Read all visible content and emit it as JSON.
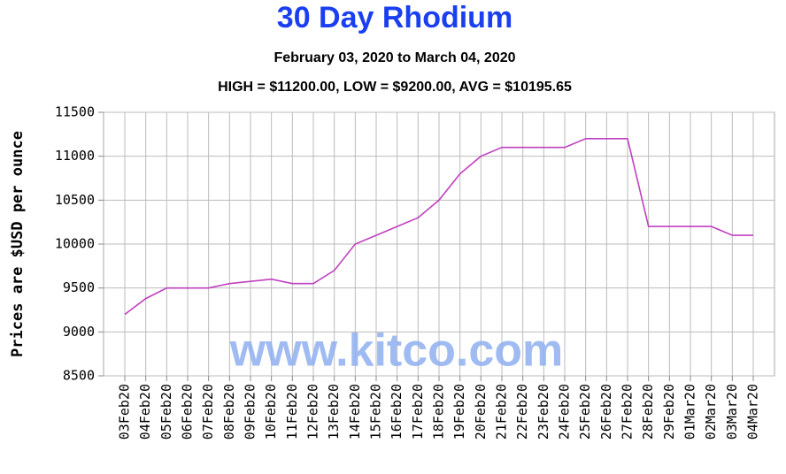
{
  "chart_data": {
    "type": "line",
    "title": "30 Day Rhodium",
    "subtitle": "February 03, 2020 to March 04, 2020",
    "stats": "HIGH = $11200.00, LOW = $9200.00, AVG = $10195.65",
    "ylabel": "Prices are $USD per ounce",
    "watermark": "www.kitco.com",
    "categories": [
      "03Feb20",
      "04Feb20",
      "05Feb20",
      "06Feb20",
      "07Feb20",
      "08Feb20",
      "09Feb20",
      "10Feb20",
      "11Feb20",
      "12Feb20",
      "13Feb20",
      "14Feb20",
      "15Feb20",
      "16Feb20",
      "17Feb20",
      "18Feb20",
      "19Feb20",
      "20Feb20",
      "21Feb20",
      "22Feb20",
      "23Feb20",
      "24Feb20",
      "25Feb20",
      "26Feb20",
      "27Feb20",
      "28Feb20",
      "29Feb20",
      "01Mar20",
      "02Mar20",
      "03Mar20",
      "04Mar20"
    ],
    "values": [
      9200,
      9380,
      9500,
      9500,
      9500,
      9550,
      9575,
      9600,
      9550,
      9550,
      9700,
      10000,
      10100,
      10200,
      10300,
      10500,
      10800,
      11000,
      11100,
      11100,
      11100,
      11100,
      11200,
      11200,
      11200,
      10200,
      10200,
      10200,
      10200,
      10100,
      10100
    ],
    "color": "#c040c0",
    "ylim": [
      8500,
      11500
    ],
    "yticks": [
      8500,
      9000,
      9500,
      10000,
      10500,
      11000,
      11500
    ],
    "grid": true
  }
}
